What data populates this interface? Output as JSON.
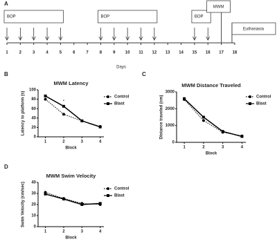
{
  "timeline": {
    "panel": "A",
    "days": [
      1,
      2,
      3,
      4,
      5,
      6,
      7,
      8,
      9,
      10,
      11,
      12,
      13,
      14,
      15,
      16,
      17,
      18
    ],
    "x_label": "Days",
    "boxes": [
      {
        "label": "BOP",
        "days": [
          1,
          2,
          3,
          4,
          5
        ]
      },
      {
        "label": "BOP",
        "days": [
          8,
          9,
          10,
          11,
          12
        ]
      },
      {
        "label": "BOP",
        "days": [
          15,
          16
        ]
      }
    ],
    "mwm": {
      "label": "MWM",
      "day": 17
    },
    "euthanasia": {
      "label": "Euthanasia",
      "day": 18
    }
  },
  "chart_data": [
    {
      "type": "line",
      "panel": "B",
      "title": "MWM Latency",
      "x_label": "Block",
      "y_label": "Latency to platform (s)",
      "x": [
        1,
        2,
        3,
        4
      ],
      "xlim": [
        0.6,
        4.2
      ],
      "xticks": [
        1,
        2,
        3,
        4
      ],
      "ylim": [
        0,
        100
      ],
      "yticks": [
        0,
        20,
        40,
        60,
        80,
        100
      ],
      "series": [
        {
          "name": "Control",
          "color": "#000000",
          "line_style": "dotted",
          "marker": "circle",
          "values": [
            80,
            48,
            34,
            22
          ]
        },
        {
          "name": "Blast",
          "color": "#000000",
          "line_style": "solid",
          "marker": "square",
          "values": [
            87,
            65,
            34,
            21
          ]
        }
      ],
      "annotations": [
        {
          "text": "*",
          "x": 2,
          "y": 75
        }
      ]
    },
    {
      "type": "line",
      "panel": "C",
      "title": "MWM Distance Traveled",
      "x_label": "Block",
      "y_label": "Distance traveled (cm)",
      "x": [
        1,
        2,
        3,
        4
      ],
      "xlim": [
        0.6,
        4.2
      ],
      "xticks": [
        1,
        2,
        3,
        4
      ],
      "ylim": [
        0,
        3000
      ],
      "yticks": [
        0,
        1000,
        2000,
        3000
      ],
      "series": [
        {
          "name": "Control",
          "color": "#000000",
          "line_style": "dotted",
          "marker": "circle",
          "values": [
            2550,
            1300,
            600,
            380
          ]
        },
        {
          "name": "Blast",
          "color": "#000000",
          "line_style": "solid",
          "marker": "square",
          "values": [
            2600,
            1500,
            650,
            350
          ]
        }
      ]
    },
    {
      "type": "line",
      "panel": "D",
      "title": "MWM Swim Velocity",
      "x_label": "Block",
      "y_label": "Swim Velocity (cm/sec)",
      "x": [
        1,
        2,
        3,
        4
      ],
      "xlim": [
        0.6,
        4.2
      ],
      "xticks": [
        1,
        2,
        3,
        4
      ],
      "ylim": [
        0,
        40
      ],
      "yticks": [
        0,
        10,
        20,
        30,
        40
      ],
      "series": [
        {
          "name": "Control",
          "color": "#000000",
          "line_style": "dotted",
          "marker": "circle",
          "values": [
            31,
            25.5,
            21,
            20
          ]
        },
        {
          "name": "Blast",
          "color": "#000000",
          "line_style": "solid",
          "marker": "square",
          "values": [
            29.5,
            25,
            20,
            21
          ]
        }
      ]
    }
  ]
}
